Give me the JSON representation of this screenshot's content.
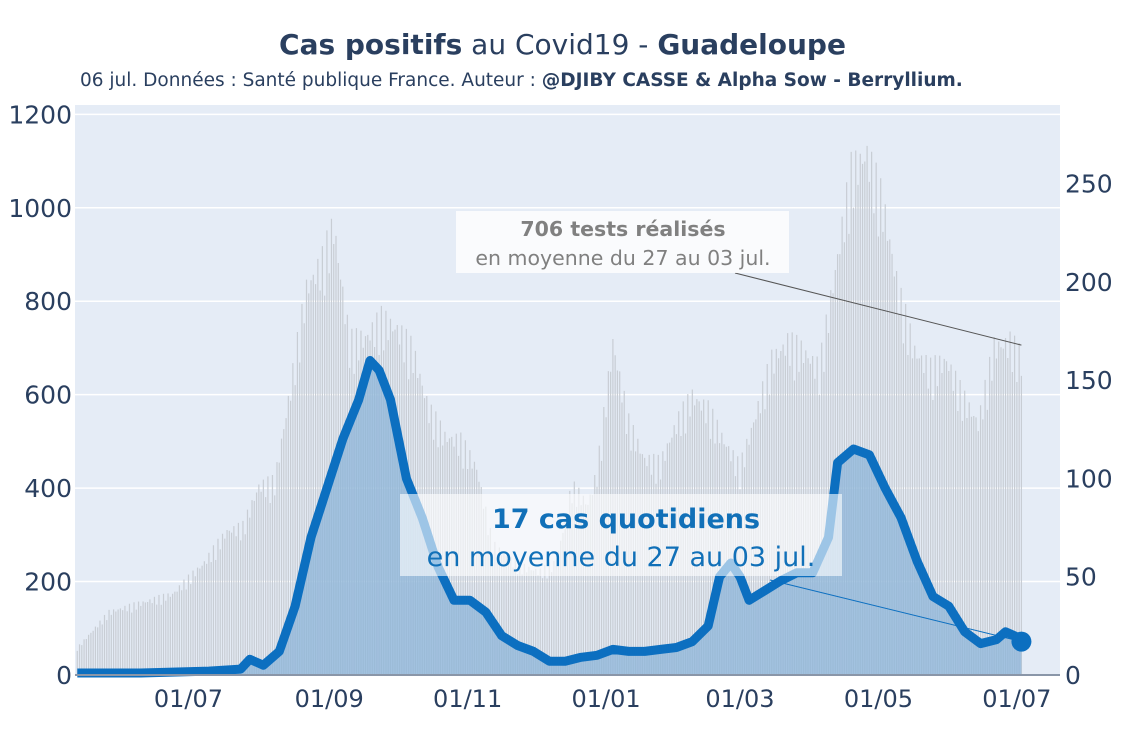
{
  "title": {
    "bold_part": "Cas positifs",
    "mid_part": " au Covid19 - ",
    "region": "Guadeloupe"
  },
  "subtitle": {
    "prefix": "06 jul. Données : Santé publique France. Auteur : ",
    "authors": "@DJIBY CASSE & Alpha Sow - Berryllium."
  },
  "colors": {
    "plot_bg": "#e5ecf6",
    "grid": "#ffffff",
    "cases_line": "#0c6fc0",
    "cases_fill": "#8cb4d8",
    "tests_bars": "#c8cdd4",
    "test_annotation_text": "#808080",
    "case_annotation_text": "#1170b8",
    "axis_text": "#2a3f5f"
  },
  "annotations": {
    "tests": {
      "headline": "706 tests réalisés",
      "detail": "en moyenne du 27 au 03 jul."
    },
    "cases": {
      "headline": "17 cas quotidiens",
      "detail": "en moyenne du 27 au 03 jul."
    }
  },
  "chart_data": {
    "type": "line",
    "left_axis": {
      "ticks": [
        0,
        200,
        400,
        600,
        800,
        1000,
        1200
      ],
      "range": [
        0,
        1220
      ]
    },
    "right_axis": {
      "ticks": [
        0,
        50,
        100,
        150,
        200,
        250
      ],
      "range": [
        0,
        290
      ]
    },
    "x_axis": {
      "ticks": [
        "2020-07-01",
        "2020-09-01",
        "2020-11-01",
        "2021-01-01",
        "2021-03-01",
        "2021-05-01",
        "2021-07-01"
      ],
      "tick_labels": [
        "01/07",
        "01/09",
        "01/11",
        "01/01",
        "01/03",
        "01/05",
        "01/07"
      ],
      "range": [
        "2020-05-12",
        "2021-07-20"
      ]
    },
    "series": [
      {
        "kind": "tests_bars",
        "axis": "left",
        "points": [
          [
            "2020-05-13",
            60
          ],
          [
            "2020-05-27",
            140
          ],
          [
            "2020-06-10",
            160
          ],
          [
            "2020-06-24",
            180
          ],
          [
            "2020-07-08",
            250
          ],
          [
            "2020-07-18",
            320
          ],
          [
            "2020-07-25",
            330
          ],
          [
            "2020-08-01",
            420
          ],
          [
            "2020-08-08",
            430
          ],
          [
            "2020-08-15",
            640
          ],
          [
            "2020-08-22",
            860
          ],
          [
            "2020-08-29",
            920
          ],
          [
            "2020-09-03",
            1000
          ],
          [
            "2020-09-10",
            740
          ],
          [
            "2020-09-17",
            750
          ],
          [
            "2020-09-24",
            790
          ],
          [
            "2020-10-01",
            770
          ],
          [
            "2020-10-08",
            720
          ],
          [
            "2020-10-15",
            590
          ],
          [
            "2020-10-22",
            530
          ],
          [
            "2020-10-29",
            520
          ],
          [
            "2020-11-05",
            460
          ],
          [
            "2020-11-12",
            290
          ],
          [
            "2020-11-19",
            260
          ],
          [
            "2020-11-26",
            240
          ],
          [
            "2020-12-03",
            230
          ],
          [
            "2020-12-10",
            250
          ],
          [
            "2020-12-17",
            420
          ],
          [
            "2020-12-24",
            380
          ],
          [
            "2020-12-28",
            450
          ],
          [
            "2021-01-04",
            740
          ],
          [
            "2021-01-11",
            560
          ],
          [
            "2021-01-18",
            480
          ],
          [
            "2021-01-25",
            470
          ],
          [
            "2021-02-01",
            560
          ],
          [
            "2021-02-08",
            620
          ],
          [
            "2021-02-15",
            590
          ],
          [
            "2021-02-22",
            520
          ],
          [
            "2021-03-01",
            460
          ],
          [
            "2021-03-08",
            580
          ],
          [
            "2021-03-15",
            700
          ],
          [
            "2021-03-22",
            740
          ],
          [
            "2021-03-29",
            720
          ],
          [
            "2021-04-05",
            680
          ],
          [
            "2021-04-12",
            900
          ],
          [
            "2021-04-19",
            1120
          ],
          [
            "2021-04-26",
            1160
          ],
          [
            "2021-05-03",
            1050
          ],
          [
            "2021-05-10",
            850
          ],
          [
            "2021-05-17",
            720
          ],
          [
            "2021-05-24",
            680
          ],
          [
            "2021-05-31",
            700
          ],
          [
            "2021-06-07",
            620
          ],
          [
            "2021-06-14",
            560
          ],
          [
            "2021-06-21",
            730
          ],
          [
            "2021-06-28",
            740
          ],
          [
            "2021-07-03",
            706
          ]
        ]
      },
      {
        "kind": "cases_7day_average",
        "axis": "right",
        "points": [
          [
            "2020-05-13",
            1
          ],
          [
            "2020-06-10",
            1
          ],
          [
            "2020-07-10",
            2
          ],
          [
            "2020-07-24",
            3
          ],
          [
            "2020-07-28",
            8
          ],
          [
            "2020-08-03",
            5
          ],
          [
            "2020-08-10",
            12
          ],
          [
            "2020-08-17",
            35
          ],
          [
            "2020-08-24",
            70
          ],
          [
            "2020-08-31",
            95
          ],
          [
            "2020-09-07",
            120
          ],
          [
            "2020-09-14",
            140
          ],
          [
            "2020-09-19",
            160
          ],
          [
            "2020-09-23",
            155
          ],
          [
            "2020-09-28",
            140
          ],
          [
            "2020-10-05",
            100
          ],
          [
            "2020-10-12",
            80
          ],
          [
            "2020-10-19",
            55
          ],
          [
            "2020-10-26",
            38
          ],
          [
            "2020-11-02",
            38
          ],
          [
            "2020-11-09",
            32
          ],
          [
            "2020-11-16",
            20
          ],
          [
            "2020-11-23",
            15
          ],
          [
            "2020-11-30",
            12
          ],
          [
            "2020-12-07",
            7
          ],
          [
            "2020-12-14",
            7
          ],
          [
            "2020-12-21",
            9
          ],
          [
            "2020-12-28",
            10
          ],
          [
            "2021-01-04",
            13
          ],
          [
            "2021-01-11",
            12
          ],
          [
            "2021-01-18",
            12
          ],
          [
            "2021-01-25",
            13
          ],
          [
            "2021-02-01",
            14
          ],
          [
            "2021-02-08",
            17
          ],
          [
            "2021-02-15",
            25
          ],
          [
            "2021-02-20",
            50
          ],
          [
            "2021-02-25",
            57
          ],
          [
            "2021-03-01",
            50
          ],
          [
            "2021-03-05",
            38
          ],
          [
            "2021-03-12",
            43
          ],
          [
            "2021-03-19",
            48
          ],
          [
            "2021-03-26",
            52
          ],
          [
            "2021-04-02",
            52
          ],
          [
            "2021-04-09",
            70
          ],
          [
            "2021-04-13",
            108
          ],
          [
            "2021-04-20",
            115
          ],
          [
            "2021-04-27",
            112
          ],
          [
            "2021-05-04",
            95
          ],
          [
            "2021-05-11",
            80
          ],
          [
            "2021-05-18",
            58
          ],
          [
            "2021-05-25",
            40
          ],
          [
            "2021-06-01",
            35
          ],
          [
            "2021-06-08",
            22
          ],
          [
            "2021-06-15",
            16
          ],
          [
            "2021-06-22",
            18
          ],
          [
            "2021-06-26",
            22
          ],
          [
            "2021-06-30",
            20
          ],
          [
            "2021-07-03",
            17
          ]
        ]
      }
    ]
  }
}
